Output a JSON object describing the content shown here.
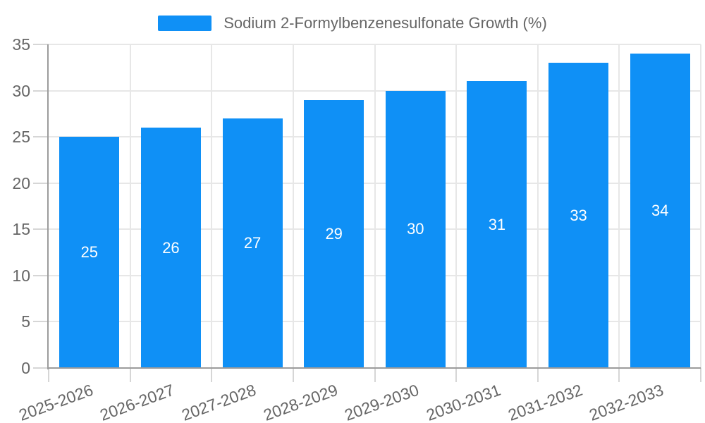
{
  "chart_data": {
    "type": "bar",
    "legend_label": "Sodium 2-Formylbenzenesulfonate Growth (%)",
    "categories": [
      "2025-2026",
      "2026-2027",
      "2027-2028",
      "2028-2029",
      "2029-2030",
      "2030-2031",
      "2031-2032",
      "2032-2033"
    ],
    "values": [
      25,
      26,
      27,
      29,
      30,
      31,
      33,
      34
    ],
    "yticks": [
      0,
      5,
      10,
      15,
      20,
      25,
      30,
      35
    ],
    "ylim": [
      0,
      35
    ],
    "xlabel": "",
    "ylabel": "",
    "grid": true,
    "legend_position": "top-center",
    "x_label_rotation_deg": -20,
    "value_labels": "inside-center",
    "colors": {
      "bar": "#0f90f6",
      "bar_label": "#ffffff",
      "axis_text": "#666666",
      "grid_line": "#e7e7e7",
      "tick_line": "#d6d6d6",
      "axis_line": "#9c9c9c",
      "background": "#ffffff"
    }
  }
}
